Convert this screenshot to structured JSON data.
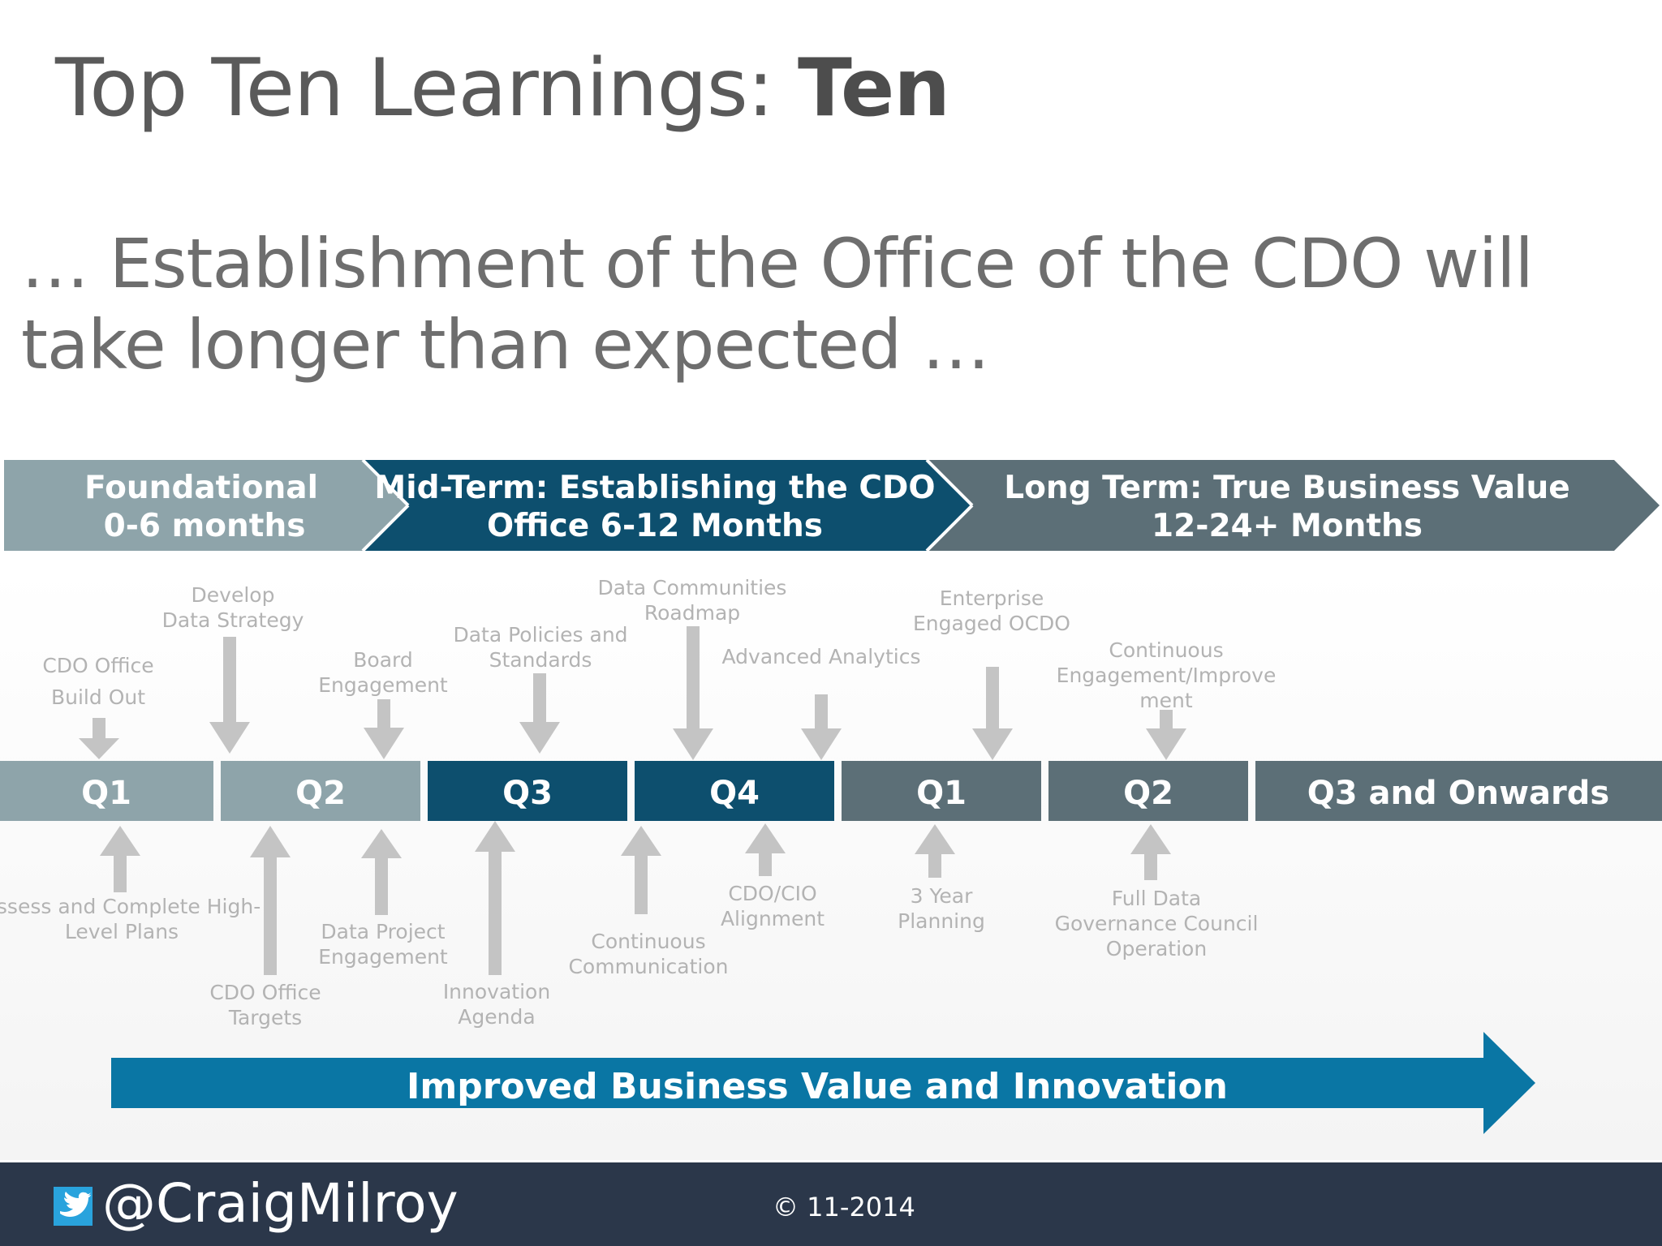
{
  "slide": {
    "title_regular": "Top Ten Learnings:",
    "title_bold": "Ten",
    "subtitle": "… Establishment of the Office of the CDO will take longer than expected …"
  },
  "phases": [
    {
      "line1": "Foundational",
      "line2": "0-6 months",
      "color": "#8ea4aa"
    },
    {
      "line1": "Mid-Term: Establishing the CDO",
      "line2": "Office 6-12 Months",
      "color": "#0d4f6e"
    },
    {
      "line1": "Long Term: True Business Value",
      "line2": "12-24+ Months",
      "color": "#5c6f77"
    }
  ],
  "quarters": [
    {
      "label": "Q1",
      "color": "#8ea4aa"
    },
    {
      "label": "Q2",
      "color": "#8ea4aa"
    },
    {
      "label": "Q3",
      "color": "#0d4f6e"
    },
    {
      "label": "Q4",
      "color": "#0d4f6e"
    },
    {
      "label": "Q1",
      "color": "#5c6f77"
    },
    {
      "label": "Q2",
      "color": "#5c6f77"
    },
    {
      "label": "Q3 and Onwards",
      "color": "#5c6f77"
    }
  ],
  "milestones_above": [
    {
      "lines": [
        "CDO Office",
        "Build Out"
      ]
    },
    {
      "lines": [
        "Develop",
        "Data Strategy"
      ]
    },
    {
      "lines": [
        "Board",
        "Engagement"
      ]
    },
    {
      "lines": [
        "Data Policies and",
        "Standards"
      ]
    },
    {
      "lines": [
        "Data Communities",
        "Roadmap"
      ]
    },
    {
      "lines": [
        "Advanced Analytics"
      ]
    },
    {
      "lines": [
        "Enterprise",
        "Engaged OCDO"
      ]
    },
    {
      "lines": [
        "Continuous",
        "Engagement/Improve",
        "ment"
      ]
    }
  ],
  "milestones_below": [
    {
      "lines": [
        "Assess and Complete High-",
        "Level Plans"
      ]
    },
    {
      "lines": [
        "CDO Office",
        "Targets"
      ]
    },
    {
      "lines": [
        "Data Project",
        "Engagement"
      ]
    },
    {
      "lines": [
        "Innovation",
        "Agenda"
      ]
    },
    {
      "lines": [
        "Continuous",
        "Communication"
      ]
    },
    {
      "lines": [
        "CDO/CIO",
        "Alignment"
      ]
    },
    {
      "lines": [
        "3 Year",
        "Planning"
      ]
    },
    {
      "lines": [
        "Full Data",
        "Governance Council",
        "Operation"
      ]
    }
  ],
  "banner": {
    "label": "Improved Business Value and Innovation",
    "color": "#0a76a4"
  },
  "arrow_color": "#c4c4c4",
  "footer": {
    "handle": "@CraigMilroy",
    "copyright": "© 11-2014",
    "icon": "twitter-bird-icon"
  }
}
